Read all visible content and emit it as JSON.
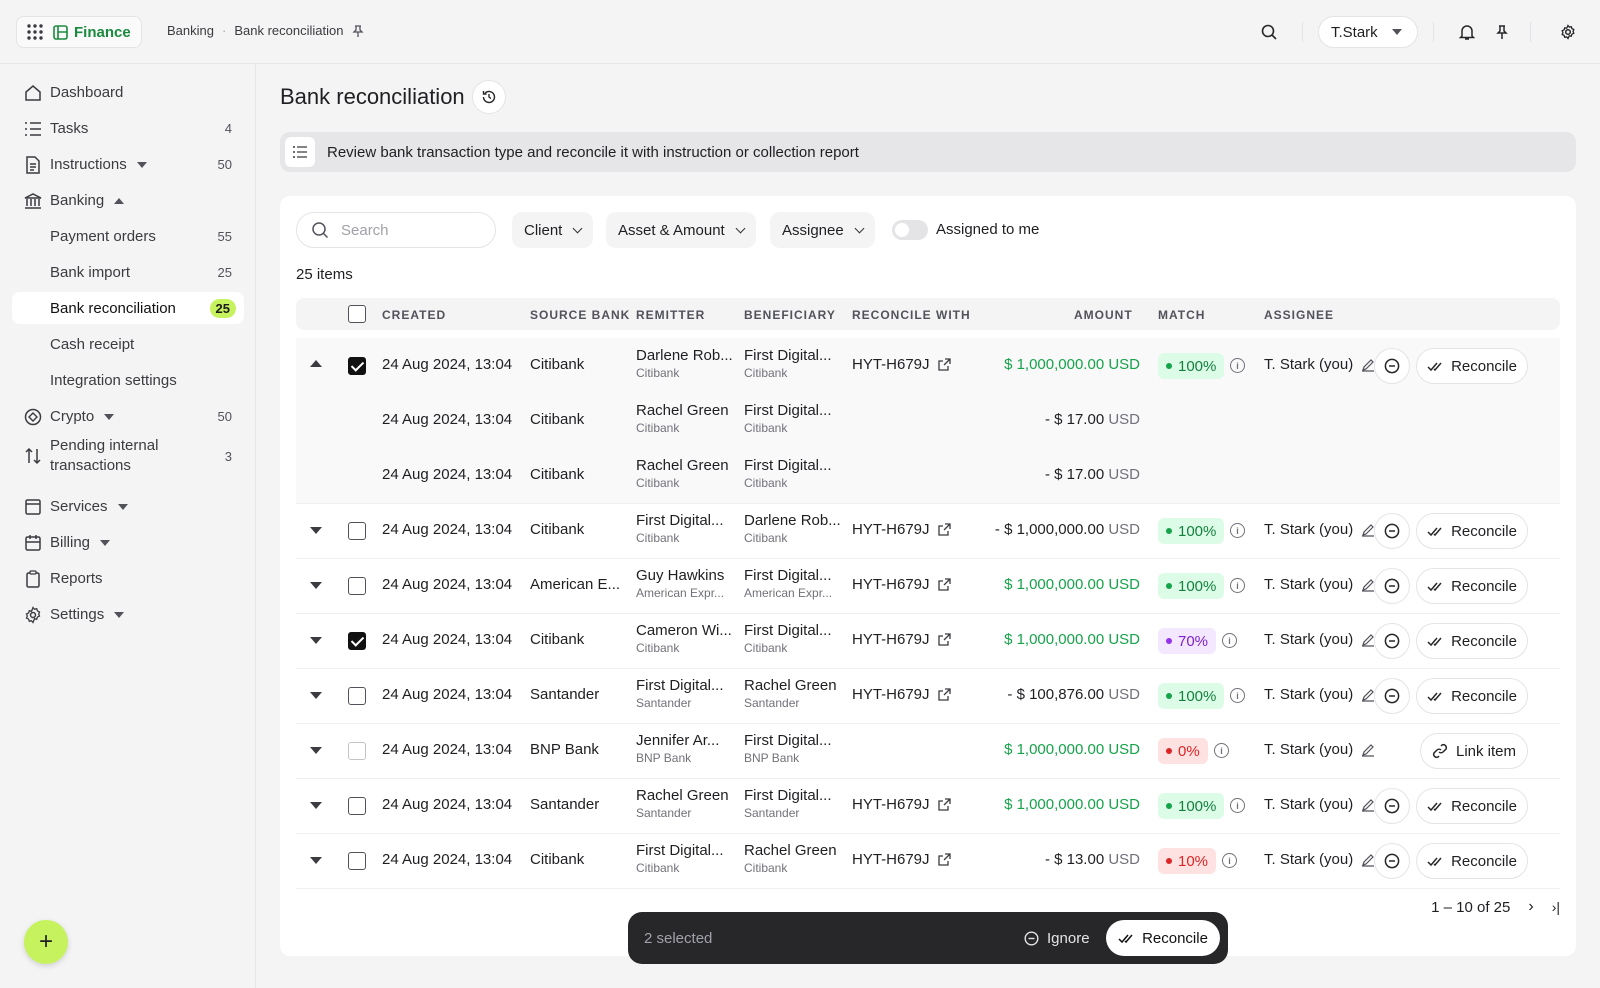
{
  "app": {
    "name": "Finance"
  },
  "breadcrumbs": [
    "Banking",
    "Bank reconciliation"
  ],
  "user": {
    "name": "T.Stark"
  },
  "sidebar": {
    "items": [
      {
        "label": "Dashboard",
        "icon": "home-icon",
        "count": ""
      },
      {
        "label": "Tasks",
        "icon": "list-icon",
        "count": "4"
      },
      {
        "label": "Instructions",
        "icon": "document-icon",
        "count": "50"
      },
      {
        "label": "Banking",
        "icon": "bank-icon",
        "count": ""
      },
      {
        "label": "Payment orders",
        "count": "55"
      },
      {
        "label": "Bank import",
        "count": "25"
      },
      {
        "label": "Bank reconciliation",
        "count": "25"
      },
      {
        "label": "Cash receipt",
        "count": ""
      },
      {
        "label": "Integration settings",
        "count": ""
      },
      {
        "label": "Crypto",
        "icon": "crypto-icon",
        "count": "50"
      },
      {
        "label": "Pending internal transactions",
        "icon": "transfer-icon",
        "count": "3"
      },
      {
        "label": "Services",
        "icon": "services-icon",
        "count": ""
      },
      {
        "label": "Billing",
        "icon": "billing-icon",
        "count": ""
      },
      {
        "label": "Reports",
        "icon": "clipboard-icon",
        "count": ""
      },
      {
        "label": "Settings",
        "icon": "gear-icon",
        "count": ""
      }
    ],
    "pending_line1": "Pending internal",
    "pending_line2": "transactions"
  },
  "page": {
    "title": "Bank reconciliation",
    "banner": "Review bank transaction type and reconcile it with instruction or collection report"
  },
  "filters": {
    "search_placeholder": "Search",
    "client": "Client",
    "asset_amount": "Asset & Amount",
    "assignee": "Assignee",
    "assigned_to_me": "Assigned to me"
  },
  "table": {
    "count_label": "25 items",
    "columns": [
      "CREATED",
      "SOURCE BANK",
      "REMITTER",
      "BENEFICIARY",
      "RECONCILE WITH",
      "AMOUNT",
      "MATCH",
      "ASSIGNEE"
    ],
    "rows": [
      {
        "created": "24 Aug 2024, 13:04",
        "bank": "Citibank",
        "remitter": "Darlene Rob...",
        "remitter_bank": "Citibank",
        "beneficiary": "First Digital...",
        "beneficiary_bank": "Citibank",
        "reconcile": "HYT-H679J",
        "amount_sign": "",
        "amount": "$ 1,000,000.00",
        "currency": "USD",
        "match": "100%",
        "match_color": "green",
        "assignee": "T. Stark (you)",
        "action": "Reconcile"
      },
      {
        "created": "24 Aug 2024, 13:04",
        "bank": "Citibank",
        "remitter": "Rachel Green",
        "remitter_bank": "Citibank",
        "beneficiary": "First Digital...",
        "beneficiary_bank": "Citibank",
        "reconcile": "",
        "amount_sign": "-",
        "amount": "$ 17.00",
        "currency": "USD",
        "match": "",
        "match_color": "",
        "assignee": "",
        "action": ""
      },
      {
        "created": "24 Aug 2024, 13:04",
        "bank": "Citibank",
        "remitter": "Rachel Green",
        "remitter_bank": "Citibank",
        "beneficiary": "First Digital...",
        "beneficiary_bank": "Citibank",
        "reconcile": "",
        "amount_sign": "-",
        "amount": "$ 17.00",
        "currency": "USD",
        "match": "",
        "match_color": "",
        "assignee": "",
        "action": ""
      },
      {
        "created": "24 Aug 2024, 13:04",
        "bank": "Citibank",
        "remitter": "First Digital...",
        "remitter_bank": "Citibank",
        "beneficiary": "Darlene Rob...",
        "beneficiary_bank": "Citibank",
        "reconcile": "HYT-H679J",
        "amount_sign": "-",
        "amount": "$ 1,000,000.00",
        "currency": "USD",
        "match": "100%",
        "match_color": "green",
        "assignee": "T. Stark (you)",
        "action": "Reconcile"
      },
      {
        "created": "24 Aug 2024, 13:04",
        "bank": "American E...",
        "remitter": "Guy Hawkins",
        "remitter_bank": "American Expr...",
        "beneficiary": "First Digital...",
        "beneficiary_bank": "American Expr...",
        "reconcile": "HYT-H679J",
        "amount_sign": "",
        "amount": "$ 1,000,000.00",
        "currency": "USD",
        "match": "100%",
        "match_color": "green",
        "assignee": "T. Stark (you)",
        "action": "Reconcile"
      },
      {
        "created": "24 Aug 2024, 13:04",
        "bank": "Citibank",
        "remitter": "Cameron Wi...",
        "remitter_bank": "Citibank",
        "beneficiary": "First Digital...",
        "beneficiary_bank": "Citibank",
        "reconcile": "HYT-H679J",
        "amount_sign": "",
        "amount": "$ 1,000,000.00",
        "currency": "USD",
        "match": "70%",
        "match_color": "purple",
        "assignee": "T. Stark (you)",
        "action": "Reconcile"
      },
      {
        "created": "24 Aug 2024, 13:04",
        "bank": "Santander",
        "remitter": "First Digital...",
        "remitter_bank": "Santander",
        "beneficiary": "Rachel Green",
        "beneficiary_bank": "Santander",
        "reconcile": "HYT-H679J",
        "amount_sign": "-",
        "amount": "$ 100,876.00",
        "currency": "USD",
        "match": "100%",
        "match_color": "green",
        "assignee": "T. Stark (you)",
        "action": "Reconcile"
      },
      {
        "created": "24 Aug 2024, 13:04",
        "bank": "BNP Bank",
        "remitter": "Jennifer Ar...",
        "remitter_bank": "BNP Bank",
        "beneficiary": "First Digital...",
        "beneficiary_bank": "BNP Bank",
        "reconcile": "",
        "amount_sign": "",
        "amount": "$ 1,000,000.00",
        "currency": "USD",
        "match": "0%",
        "match_color": "red",
        "assignee": "T. Stark (you)",
        "action": "Link item"
      },
      {
        "created": "24 Aug 2024, 13:04",
        "bank": "Santander",
        "remitter": "Rachel Green",
        "remitter_bank": "Santander",
        "beneficiary": "First Digital...",
        "beneficiary_bank": "Santander",
        "reconcile": "HYT-H679J",
        "amount_sign": "",
        "amount": "$ 1,000,000.00",
        "currency": "USD",
        "match": "100%",
        "match_color": "green",
        "assignee": "T. Stark (you)",
        "action": "Reconcile"
      },
      {
        "created": "24 Aug 2024, 13:04",
        "bank": "Citibank",
        "remitter": "First Digital...",
        "remitter_bank": "Citibank",
        "beneficiary": "Rachel Green",
        "beneficiary_bank": "Citibank",
        "reconcile": "HYT-H679J",
        "amount_sign": "-",
        "amount": "$ 13.00",
        "currency": "USD",
        "match": "10%",
        "match_color": "red",
        "assignee": "T. Stark (you)",
        "action": "Reconcile"
      }
    ]
  },
  "pagination": {
    "range": "1 – 10 of 25"
  },
  "selection_bar": {
    "count": "2 selected",
    "ignore": "Ignore",
    "reconcile": "Reconcile"
  },
  "colors": {
    "accent": "#c6f25e",
    "positive": "#16a34a",
    "brand": "#1a8a3f"
  }
}
